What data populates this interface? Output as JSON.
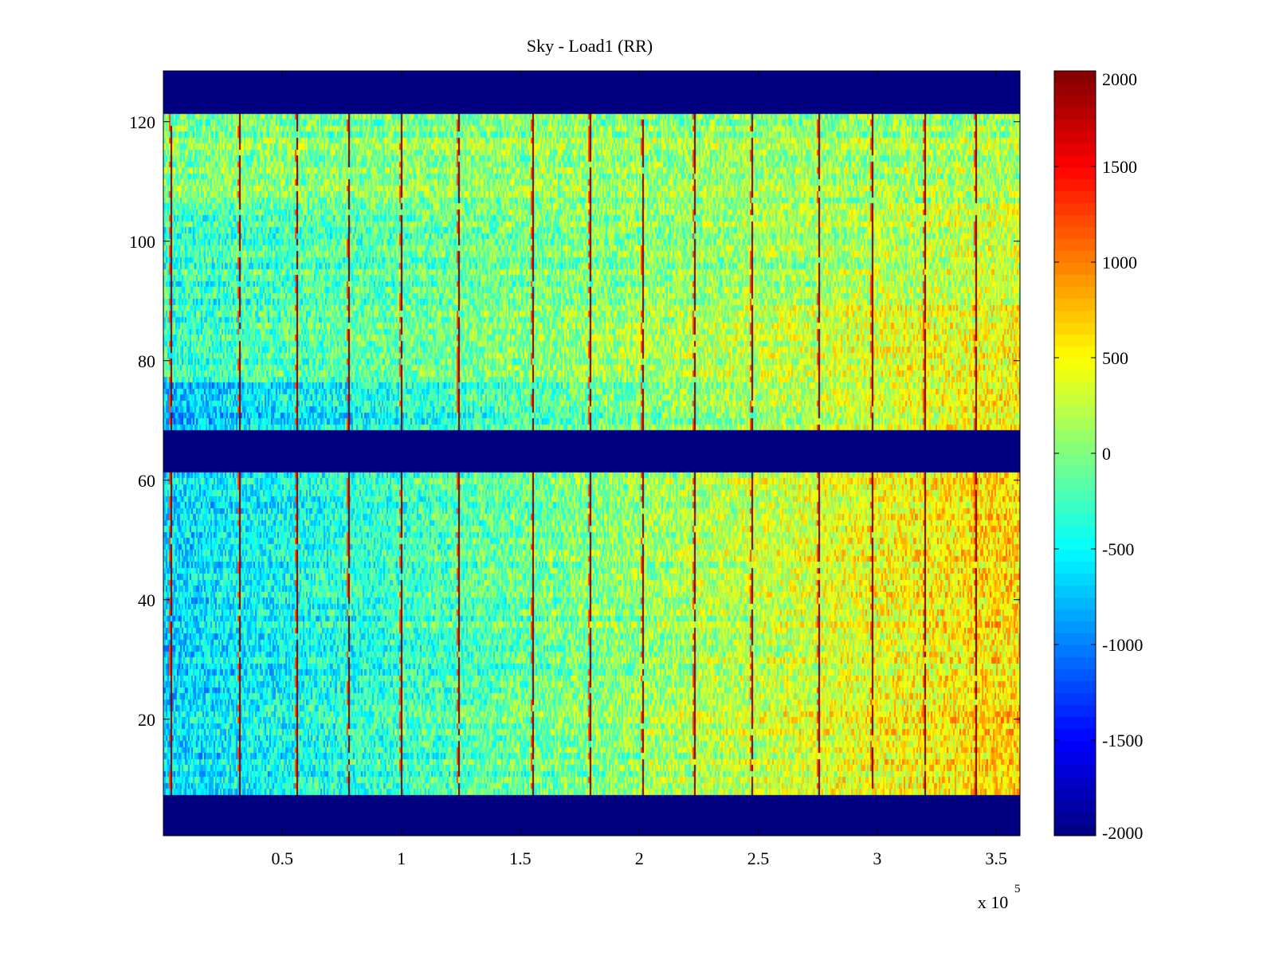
{
  "chart_data": {
    "type": "heatmap",
    "title": "Sky - Load1 (RR)",
    "xlabel": "",
    "ylabel": "",
    "x_exponent_label": "x 10",
    "x_exponent": "5",
    "xlim": [
      0,
      360000
    ],
    "ylim": [
      0.5,
      128.5
    ],
    "x_ticks": [
      50000,
      100000,
      150000,
      200000,
      250000,
      300000,
      350000
    ],
    "x_tick_labels": [
      "0.5",
      "1",
      "1.5",
      "2",
      "2.5",
      "3",
      "3.5"
    ],
    "y_ticks": [
      20,
      40,
      60,
      80,
      100,
      120
    ],
    "y_tick_labels": [
      "20",
      "40",
      "60",
      "80",
      "100",
      "120"
    ],
    "colorbar": {
      "colormap": "jet",
      "clim": [
        -2000,
        2000
      ],
      "ticks": [
        -2000,
        -1500,
        -1000,
        -500,
        0,
        500,
        1000,
        1500,
        2000
      ],
      "tick_labels": [
        "-2000",
        "-1500",
        "-1000",
        "-500",
        "0",
        "500",
        "1000",
        "1500",
        "2000"
      ]
    },
    "masked_row_bands": [
      [
        1,
        7
      ],
      [
        62,
        68
      ],
      [
        122,
        128
      ]
    ],
    "value_ranges": [
      {
        "rows": [
          8,
          61
        ],
        "value_at_x_start": -650,
        "value_at_x_end": 650
      },
      {
        "rows": [
          69,
          76
        ],
        "value_at_x_start": -750,
        "value_at_x_end": 550
      },
      {
        "rows": [
          77,
          90
        ],
        "value_at_x_start": -350,
        "value_at_x_end": 450
      },
      {
        "rows": [
          91,
          106
        ],
        "value_at_x_start": -300,
        "value_at_x_end": 300
      },
      {
        "rows": [
          107,
          121
        ],
        "value_at_x_start": 0,
        "value_at_x_end": 150
      }
    ],
    "spike_columns_x": [
      3000,
      32000,
      56000,
      78000,
      100000,
      124000,
      155000,
      179000,
      201000,
      223000,
      247000,
      275000,
      298000,
      320000,
      341000
    ],
    "spike_value": 2000
  }
}
